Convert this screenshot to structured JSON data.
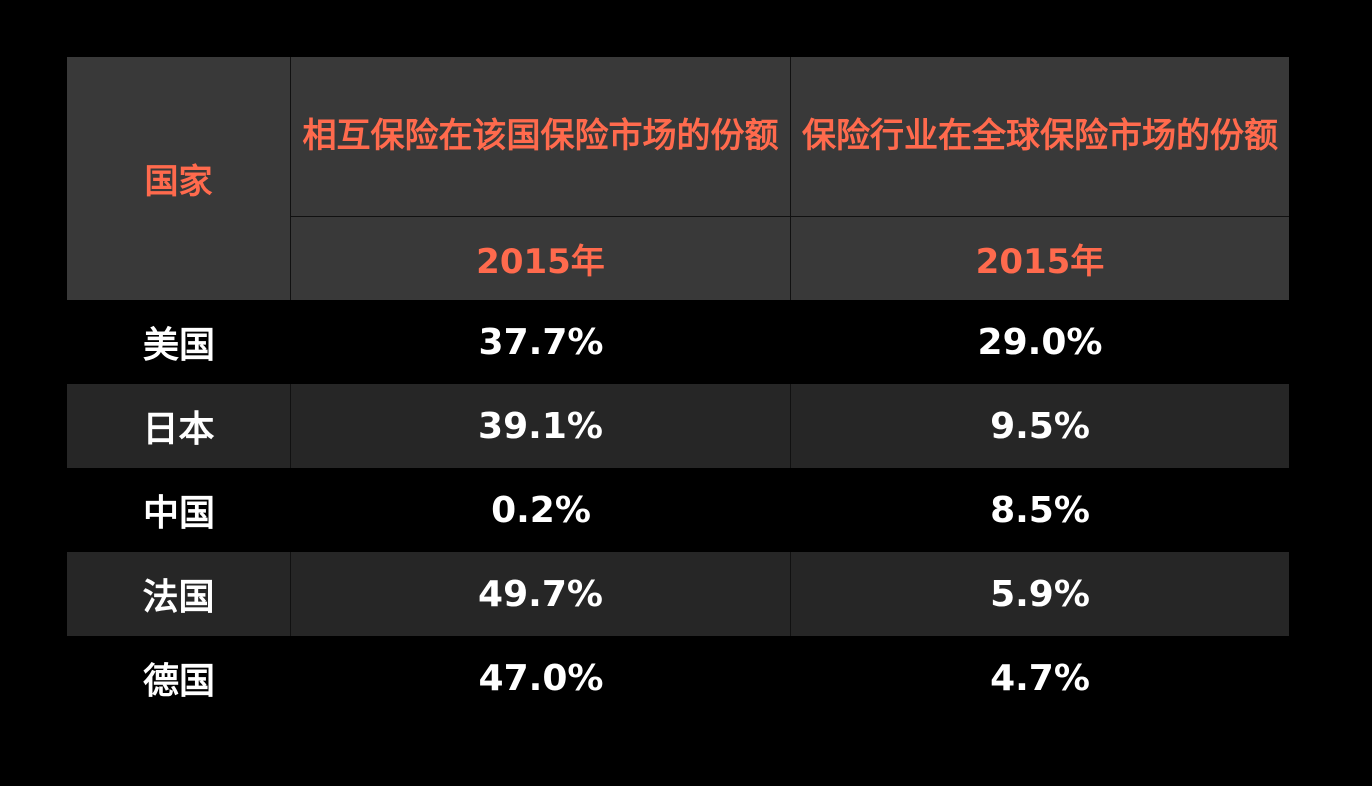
{
  "chart_data": {
    "type": "table",
    "header": {
      "country": "国家",
      "col1_title_line1": "相互保险在该国",
      "col1_title_line2": "保险市场的份额",
      "col2_title_line1": "保险行业在全球",
      "col2_title_line2": "保险市场的份额",
      "col1_year": "2015年",
      "col2_year": "2015年"
    },
    "rows": [
      {
        "country": "美国",
        "v1": "37.7%",
        "v2": "29.0%"
      },
      {
        "country": "日本",
        "v1": "39.1%",
        "v2": "9.5%"
      },
      {
        "country": "中国",
        "v1": "0.2%",
        "v2": "8.5%"
      },
      {
        "country": "法国",
        "v1": "49.7%",
        "v2": "5.9%"
      },
      {
        "country": "德国",
        "v1": "47.0%",
        "v2": "4.7%"
      }
    ]
  },
  "colors": {
    "background": "#000000",
    "header_bg": "#393939",
    "header_text": "#ff6a4d",
    "row_alt_bg": "#262626",
    "body_text": "#ffffff"
  }
}
